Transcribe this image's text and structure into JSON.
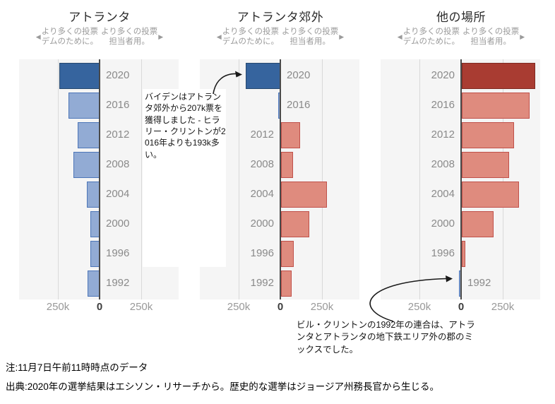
{
  "subtitle": {
    "left_arrow": "◀",
    "left_line1": "より多くの投票",
    "left_line2": "デムのために。",
    "right_line1": "より多くの投票",
    "right_line2": "担当者用。",
    "right_arrow": "▶"
  },
  "annotations": {
    "suburbs": "バイデンはアトランタ郊外から207k票を獲得しました - ヒラリー・クリントンが2016年よりも193k多い。",
    "clinton": "ビル・クリントンの1992年の連合は、アトランタとアトランタの地下鉄エリア外の郡のミックスでした。"
  },
  "footer": {
    "note": "注:11月7日午前11時時点のデータ",
    "source": "出典:2020年の選挙結果はエシソン・リサーチから。歴史的な選挙はジョージア州務長官から生じる。"
  },
  "colors": {
    "dem_dark": "#36649e",
    "dem_dark_border": "#27496f",
    "dem_light": "#92abd4",
    "dem_light_border": "#4d76b8",
    "gop_dark": "#a93c32",
    "gop_dark_border": "#7f2b22",
    "gop_light": "#df8b7e",
    "gop_light_border": "#c0514a",
    "plot_bg": "#f5f5f5",
    "gridline": "#d9d9d9",
    "zero_axis": "#4a4a4a",
    "arrow": "#1a1a1a"
  },
  "chart_data": [
    {
      "id": "atlanta",
      "type": "bar",
      "title": "アトランタ",
      "orientation": "horizontal-diverging",
      "years": [
        2020,
        2016,
        2012,
        2008,
        2004,
        2000,
        1996,
        1992
      ],
      "dem_margin_k": [
        240,
        185,
        130,
        155,
        75,
        55,
        55,
        70
      ],
      "highlight_year": 2020,
      "x_ticks": [
        "250k",
        "0",
        "250k"
      ],
      "x_tick_values_k": [
        -250,
        0,
        250
      ],
      "x_range_k": [
        -483,
        475
      ],
      "grid": true,
      "legend": "none"
    },
    {
      "id": "suburbs",
      "type": "bar",
      "title": "アトランタ郊外",
      "orientation": "horizontal-diverging",
      "years": [
        2020,
        2016,
        2012,
        2008,
        2004,
        2000,
        1996,
        1992
      ],
      "dem_margin_k": [
        207,
        14,
        -115,
        -70,
        -275,
        -170,
        -75,
        -65
      ],
      "highlight_year": 2020,
      "x_ticks": [
        "250k",
        "0",
        "250k"
      ],
      "x_tick_values_k": [
        -250,
        0,
        250
      ],
      "x_range_k": [
        -483,
        475
      ],
      "grid": true,
      "legend": "none"
    },
    {
      "id": "elsewhere",
      "type": "bar",
      "title": "他の場所",
      "orientation": "horizontal-diverging",
      "years": [
        2020,
        2016,
        2012,
        2008,
        2004,
        2000,
        1996,
        1992
      ],
      "dem_margin_k": [
        -440,
        -405,
        -315,
        -285,
        -345,
        -190,
        -20,
        12
      ],
      "highlight_year": 2020,
      "x_ticks": [
        "250k",
        "0",
        "250k"
      ],
      "x_tick_values_k": [
        -250,
        0,
        250
      ],
      "x_range_k": [
        -483,
        475
      ],
      "grid": true,
      "legend": "none"
    }
  ]
}
